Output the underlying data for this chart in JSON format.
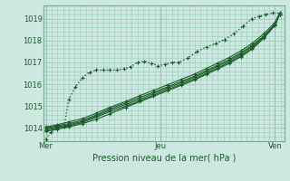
{
  "bg_color": "#cce8e0",
  "grid_color": "#99ccbb",
  "line_color": "#1a5c28",
  "xlabel": "Pression niveau de la mer( hPa )",
  "xlabel_color": "#1a5c28",
  "xtick_labels": [
    "Mer",
    "Jeu",
    "Ven"
  ],
  "xtick_positions": [
    0.0,
    0.5,
    1.0
  ],
  "ytick_labels": [
    "1014",
    "1015",
    "1016",
    "1017",
    "1018",
    "1019"
  ],
  "ytick_positions": [
    1014,
    1015,
    1016,
    1017,
    1018,
    1019
  ],
  "ylim": [
    1013.4,
    1019.6
  ],
  "xlim": [
    -0.01,
    1.04
  ],
  "series": [
    {
      "comment": "dotted line - goes up fast then plateau around 1016.6-1017, then rises again",
      "x": [
        0.0,
        0.02,
        0.05,
        0.08,
        0.1,
        0.13,
        0.16,
        0.19,
        0.22,
        0.25,
        0.28,
        0.31,
        0.34,
        0.37,
        0.4,
        0.43,
        0.46,
        0.49,
        0.52,
        0.55,
        0.58,
        0.62,
        0.66,
        0.7,
        0.74,
        0.78,
        0.82,
        0.86,
        0.9,
        0.93,
        0.96,
        0.99,
        1.02
      ],
      "y": [
        1013.5,
        1013.8,
        1014.0,
        1014.05,
        1015.3,
        1015.9,
        1016.3,
        1016.55,
        1016.65,
        1016.65,
        1016.65,
        1016.65,
        1016.7,
        1016.8,
        1017.0,
        1017.05,
        1016.95,
        1016.85,
        1016.9,
        1017.0,
        1017.0,
        1017.2,
        1017.5,
        1017.7,
        1017.85,
        1018.05,
        1018.3,
        1018.65,
        1019.0,
        1019.1,
        1019.2,
        1019.25,
        1019.25
      ],
      "style": "dotted",
      "lw": 1.0
    },
    {
      "comment": "solid line 1 - bottom-most, very gradual rise",
      "x": [
        0.0,
        0.05,
        0.1,
        0.16,
        0.22,
        0.28,
        0.35,
        0.41,
        0.47,
        0.53,
        0.59,
        0.65,
        0.7,
        0.75,
        0.8,
        0.85,
        0.9,
        0.95,
        1.0,
        1.02
      ],
      "y": [
        1013.85,
        1013.95,
        1014.05,
        1014.2,
        1014.4,
        1014.65,
        1014.95,
        1015.2,
        1015.45,
        1015.7,
        1015.95,
        1016.2,
        1016.45,
        1016.7,
        1016.95,
        1017.25,
        1017.6,
        1018.1,
        1018.7,
        1019.2
      ],
      "style": "solid",
      "lw": 0.8
    },
    {
      "comment": "solid line 2",
      "x": [
        0.0,
        0.05,
        0.1,
        0.16,
        0.22,
        0.28,
        0.35,
        0.41,
        0.47,
        0.53,
        0.59,
        0.65,
        0.7,
        0.75,
        0.8,
        0.85,
        0.9,
        0.95,
        1.0,
        1.02
      ],
      "y": [
        1013.9,
        1014.0,
        1014.1,
        1014.25,
        1014.5,
        1014.75,
        1015.0,
        1015.25,
        1015.5,
        1015.75,
        1016.0,
        1016.25,
        1016.5,
        1016.75,
        1017.0,
        1017.3,
        1017.65,
        1018.1,
        1018.7,
        1019.2
      ],
      "style": "solid",
      "lw": 0.8
    },
    {
      "comment": "solid line 3",
      "x": [
        0.0,
        0.05,
        0.1,
        0.16,
        0.22,
        0.28,
        0.35,
        0.41,
        0.47,
        0.53,
        0.59,
        0.65,
        0.7,
        0.75,
        0.8,
        0.85,
        0.9,
        0.95,
        1.0,
        1.02
      ],
      "y": [
        1013.95,
        1014.05,
        1014.15,
        1014.3,
        1014.55,
        1014.82,
        1015.08,
        1015.32,
        1015.57,
        1015.82,
        1016.07,
        1016.32,
        1016.57,
        1016.82,
        1017.07,
        1017.37,
        1017.72,
        1018.15,
        1018.72,
        1019.2
      ],
      "style": "solid",
      "lw": 0.8
    },
    {
      "comment": "solid line 4",
      "x": [
        0.0,
        0.05,
        0.1,
        0.16,
        0.22,
        0.28,
        0.35,
        0.41,
        0.47,
        0.53,
        0.59,
        0.65,
        0.7,
        0.75,
        0.8,
        0.85,
        0.9,
        0.95,
        1.0,
        1.02
      ],
      "y": [
        1014.0,
        1014.1,
        1014.2,
        1014.35,
        1014.6,
        1014.88,
        1015.15,
        1015.4,
        1015.63,
        1015.88,
        1016.13,
        1016.38,
        1016.63,
        1016.88,
        1017.13,
        1017.43,
        1017.78,
        1018.2,
        1018.75,
        1019.2
      ],
      "style": "solid",
      "lw": 0.8
    },
    {
      "comment": "solid line 5 - top solid, slightly higher",
      "x": [
        0.0,
        0.05,
        0.1,
        0.16,
        0.22,
        0.28,
        0.35,
        0.41,
        0.47,
        0.53,
        0.59,
        0.65,
        0.7,
        0.75,
        0.8,
        0.85,
        0.9,
        0.95,
        1.0,
        1.02
      ],
      "y": [
        1014.05,
        1014.15,
        1014.28,
        1014.43,
        1014.68,
        1014.95,
        1015.22,
        1015.48,
        1015.72,
        1015.97,
        1016.22,
        1016.47,
        1016.72,
        1016.97,
        1017.22,
        1017.52,
        1017.87,
        1018.3,
        1018.82,
        1019.25
      ],
      "style": "solid",
      "lw": 0.8
    }
  ]
}
